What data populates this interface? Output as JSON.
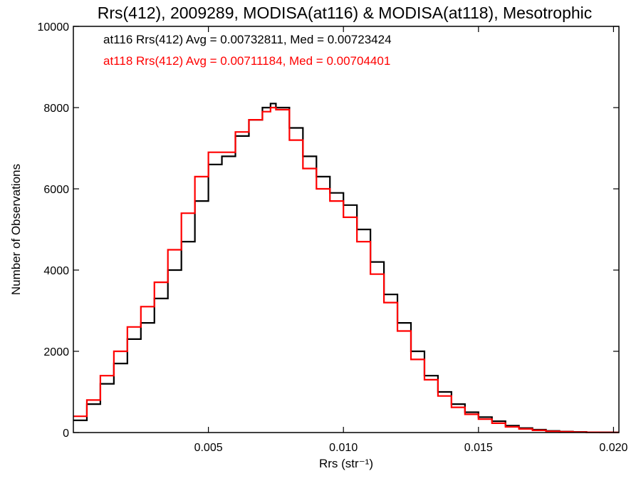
{
  "chart_data": {
    "type": "line",
    "title": "Rrs(412), 2009289, MODISA(at116) & MODISA(at118), Mesotrophic",
    "xlabel": "Rrs (str⁻¹)",
    "ylabel": "Number of Observations",
    "xlim": [
      0.0,
      0.0202
    ],
    "ylim": [
      0,
      10000
    ],
    "x_ticks": [
      "0.005",
      "0.010",
      "0.015",
      "0.020"
    ],
    "x_tick_values": [
      0.005,
      0.01,
      0.015,
      0.02
    ],
    "y_ticks": [
      "0",
      "2000",
      "4000",
      "6000",
      "8000",
      "10000"
    ],
    "y_tick_values": [
      0,
      2000,
      4000,
      6000,
      8000,
      10000
    ],
    "grid": false,
    "legend_position": "top-left",
    "series": [
      {
        "name": "at116 Rrs(412) Avg = 0.00732811, Med = 0.00723424",
        "color": "#000000",
        "x": [
          0.0,
          0.0005,
          0.001,
          0.0015,
          0.002,
          0.0025,
          0.003,
          0.0035,
          0.004,
          0.0045,
          0.005,
          0.0055,
          0.006,
          0.0065,
          0.007,
          0.0073,
          0.0075,
          0.008,
          0.0085,
          0.009,
          0.0095,
          0.01,
          0.0105,
          0.011,
          0.0115,
          0.012,
          0.0125,
          0.013,
          0.0135,
          0.014,
          0.0145,
          0.015,
          0.0155,
          0.016,
          0.0165,
          0.017,
          0.0175,
          0.018,
          0.0185,
          0.019,
          0.0195,
          0.02,
          0.0202
        ],
        "y": [
          300,
          700,
          1200,
          1700,
          2300,
          2700,
          3300,
          4000,
          4700,
          5700,
          6600,
          6800,
          7300,
          7700,
          8000,
          8100,
          8000,
          7500,
          6800,
          6300,
          5900,
          5600,
          5000,
          4200,
          3400,
          2700,
          2000,
          1400,
          1000,
          700,
          500,
          380,
          280,
          170,
          110,
          70,
          40,
          25,
          15,
          8,
          5,
          2,
          2
        ]
      },
      {
        "name": "at118 Rrs(412) Avg = 0.00711184, Med = 0.00704401",
        "color": "#ff0000",
        "x": [
          0.0,
          0.0005,
          0.001,
          0.0015,
          0.002,
          0.0025,
          0.003,
          0.0035,
          0.004,
          0.0045,
          0.005,
          0.0055,
          0.006,
          0.0065,
          0.007,
          0.0073,
          0.0075,
          0.008,
          0.0085,
          0.009,
          0.0095,
          0.01,
          0.0105,
          0.011,
          0.0115,
          0.012,
          0.0125,
          0.013,
          0.0135,
          0.014,
          0.0145,
          0.015,
          0.0155,
          0.016,
          0.0165,
          0.017,
          0.0175,
          0.018,
          0.0185,
          0.019,
          0.0195,
          0.02,
          0.0202
        ],
        "y": [
          400,
          800,
          1400,
          2000,
          2600,
          3100,
          3700,
          4500,
          5400,
          6300,
          6900,
          6900,
          7400,
          7700,
          7900,
          8000,
          7950,
          7200,
          6500,
          6000,
          5700,
          5300,
          4700,
          3900,
          3200,
          2500,
          1800,
          1300,
          900,
          620,
          450,
          330,
          230,
          140,
          90,
          55,
          30,
          20,
          12,
          6,
          4,
          2,
          2
        ]
      }
    ]
  }
}
